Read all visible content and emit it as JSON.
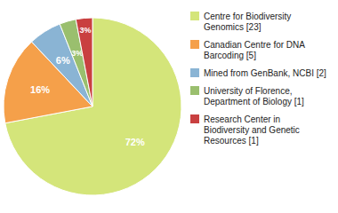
{
  "chart_data": {
    "type": "pie",
    "categories": [
      "Centre for Biodiversity\nGenomics [23]",
      "Canadian Centre for DNA\nBarcoding [5]",
      "Mined from GenBank, NCBI [2]",
      "University of Florence,\nDepartment of Biology [1]",
      "Research Center in\nBiodiversity and Genetic\nResources [1]"
    ],
    "values": [
      72,
      16,
      6,
      3,
      3
    ],
    "value_labels": [
      "72%",
      "16%",
      "6%",
      "3%",
      "3%"
    ],
    "colors": [
      "#d4e57a",
      "#f5a04a",
      "#8ab4d4",
      "#9abf6e",
      "#c94040"
    ],
    "data_labels": true,
    "legend": "right"
  }
}
